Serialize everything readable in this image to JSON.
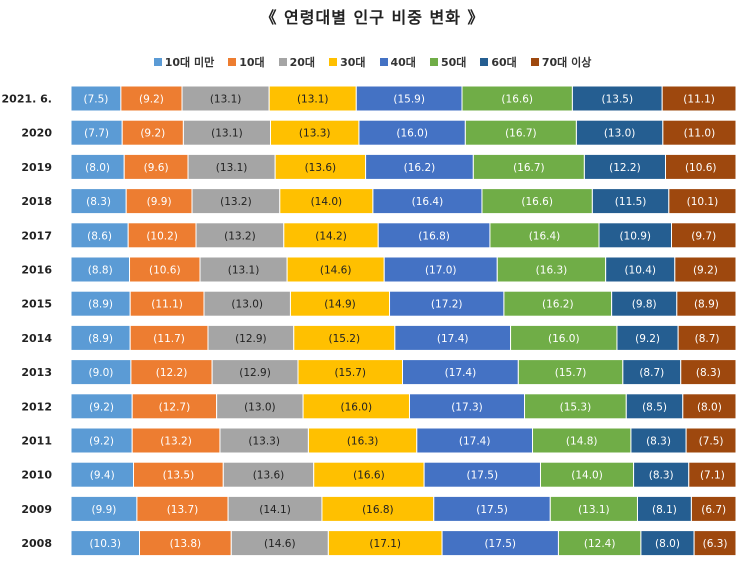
{
  "chart_data": {
    "type": "bar",
    "orientation": "horizontal",
    "stacked": true,
    "title": "《 연령대별 인구 비중 변화 》",
    "legend_position": "top",
    "categories": [
      "2021. 6.",
      "2020",
      "2019",
      "2018",
      "2017",
      "2016",
      "2015",
      "2014",
      "2013",
      "2012",
      "2011",
      "2010",
      "2009",
      "2008"
    ],
    "series": [
      {
        "name": "10대 미만",
        "color": "#5b9bd5",
        "values": [
          7.5,
          7.7,
          8.0,
          8.3,
          8.6,
          8.8,
          8.9,
          8.9,
          9.0,
          9.2,
          9.2,
          9.4,
          9.9,
          10.3
        ]
      },
      {
        "name": "10대",
        "color": "#ed7d31",
        "values": [
          9.2,
          9.2,
          9.6,
          9.9,
          10.2,
          10.6,
          11.1,
          11.7,
          12.2,
          12.7,
          13.2,
          13.5,
          13.7,
          13.8
        ]
      },
      {
        "name": "20대",
        "color": "#a5a5a5",
        "values": [
          13.1,
          13.1,
          13.1,
          13.2,
          13.2,
          13.1,
          13.0,
          12.9,
          12.9,
          13.0,
          13.3,
          13.6,
          14.1,
          14.6
        ]
      },
      {
        "name": "30대",
        "color": "#ffc000",
        "values": [
          13.1,
          13.3,
          13.6,
          14.0,
          14.2,
          14.6,
          14.9,
          15.2,
          15.7,
          16.0,
          16.3,
          16.6,
          16.8,
          17.1
        ]
      },
      {
        "name": "40대",
        "color": "#4472c4",
        "values": [
          15.9,
          16.0,
          16.2,
          16.4,
          16.8,
          17.0,
          17.2,
          17.4,
          17.4,
          17.3,
          17.4,
          17.5,
          17.5,
          17.5
        ]
      },
      {
        "name": "50대",
        "color": "#70ad47",
        "values": [
          16.6,
          16.7,
          16.7,
          16.6,
          16.4,
          16.3,
          16.2,
          16.0,
          15.7,
          15.3,
          14.8,
          14.0,
          13.1,
          12.4
        ]
      },
      {
        "name": "60대",
        "color": "#255e91",
        "values": [
          13.5,
          13.0,
          12.2,
          11.5,
          10.9,
          10.4,
          9.8,
          9.2,
          8.7,
          8.5,
          8.3,
          8.3,
          8.1,
          8.0
        ]
      },
      {
        "name": "70대 이상",
        "color": "#9e480e",
        "values": [
          11.1,
          11.0,
          10.6,
          10.1,
          9.7,
          9.2,
          8.9,
          8.7,
          8.3,
          8.0,
          7.5,
          7.1,
          6.7,
          6.3
        ]
      }
    ]
  }
}
